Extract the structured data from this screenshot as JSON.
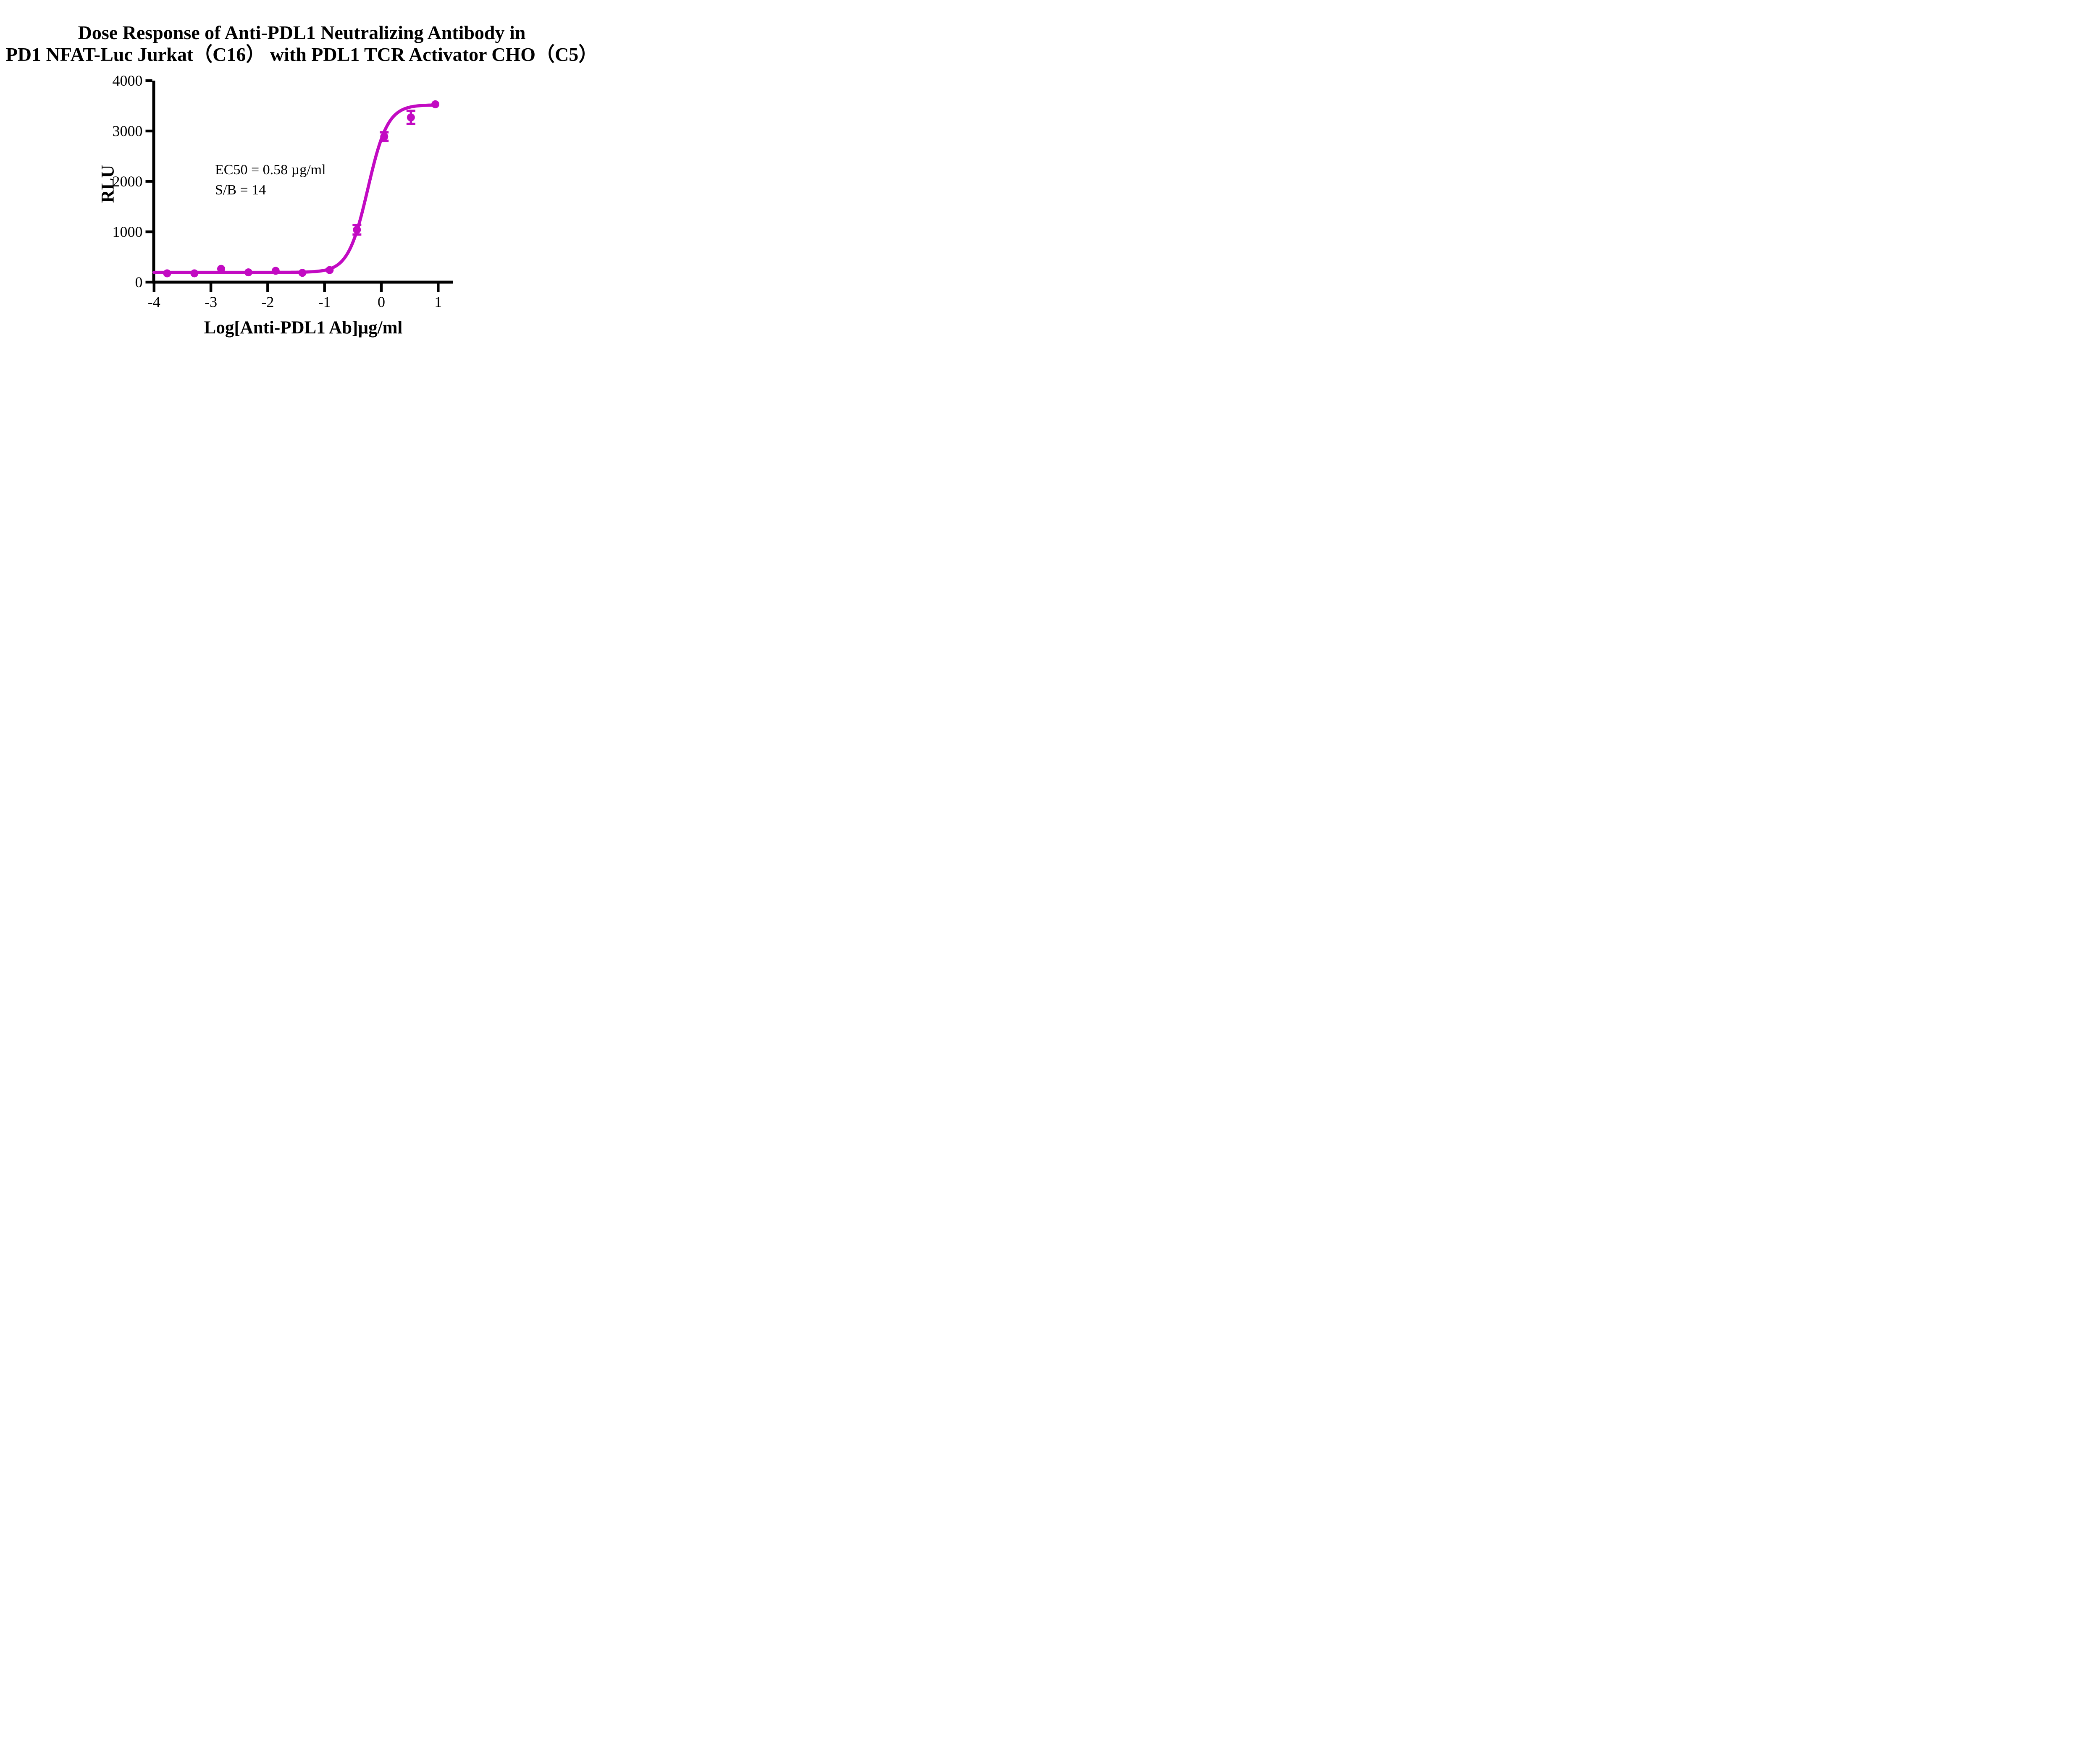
{
  "title": {
    "line1": "Dose Response of Anti-PDL1 Neutralizing Antibody in",
    "line2": "PD1 NFAT-Luc Jurkat（C16） with PDL1 TCR Activator CHO（C5）"
  },
  "annotation": {
    "ec50_text": "EC50 = 0.58 µg/ml",
    "sb_text": "S/B = 14"
  },
  "chart_data": {
    "type": "scatter",
    "subtype": "dose-response-curve-with-points-and-error-bars",
    "title": "Dose Response of Anti-PDL1 Neutralizing Antibody in PD1 NFAT-Luc Jurkat（C16） with PDL1 TCR Activator CHO（C5）",
    "xlabel": "Log[Anti-PDL1 Ab]µg/ml",
    "ylabel": "RLU",
    "xlim": [
      -4,
      1.3
    ],
    "ylim": [
      0,
      4000
    ],
    "x_ticks": [
      -4,
      -3,
      -2,
      -1,
      0,
      1
    ],
    "y_ticks": [
      0,
      1000,
      2000,
      3000,
      4000
    ],
    "grid": false,
    "legend": "none",
    "ec50_ug_ml": 0.58,
    "signal_to_background": 14,
    "points": [
      {
        "x": -3.77,
        "y": 175,
        "err": 0
      },
      {
        "x": -3.29,
        "y": 175,
        "err": 0
      },
      {
        "x": -2.82,
        "y": 265,
        "err": 0
      },
      {
        "x": -2.34,
        "y": 195,
        "err": 0
      },
      {
        "x": -1.86,
        "y": 225,
        "err": 0
      },
      {
        "x": -1.39,
        "y": 185,
        "err": 0
      },
      {
        "x": -0.91,
        "y": 240,
        "err": 0
      },
      {
        "x": -0.43,
        "y": 1040,
        "err": 95
      },
      {
        "x": 0.05,
        "y": 2890,
        "err": 85
      },
      {
        "x": 0.52,
        "y": 3270,
        "err": 130
      },
      {
        "x": 0.95,
        "y": 3530,
        "err": 0
      }
    ],
    "curve_fit": {
      "model": "4PL",
      "bottom": 195,
      "top": 3520,
      "log_ec50": -0.237,
      "hill_slope": 2.5,
      "x_start": -4,
      "x_end": 0.97
    }
  },
  "colors": {
    "curve": "#C20AC2",
    "axis": "#000000",
    "text": "#000000",
    "background": "#FFFFFF"
  }
}
